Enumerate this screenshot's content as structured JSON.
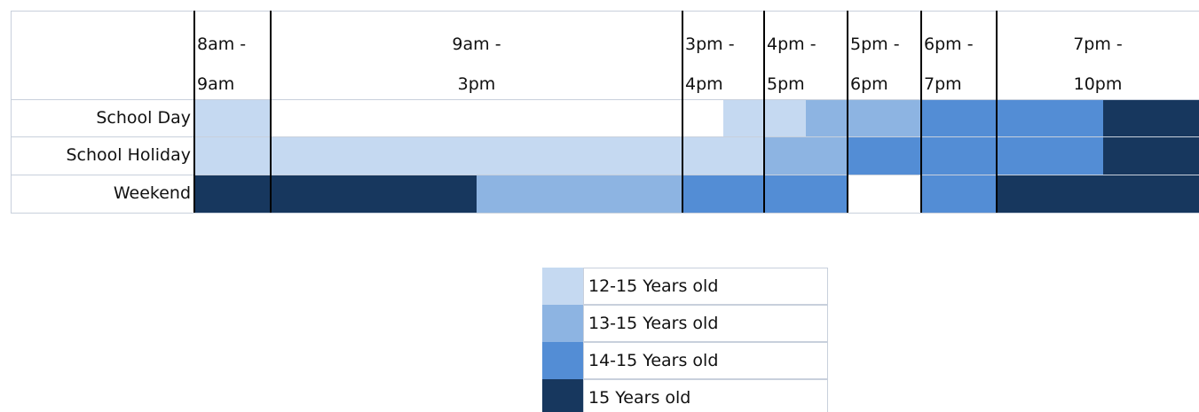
{
  "table": {
    "columns": [
      [
        "8am -",
        "9am"
      ],
      [
        "9am -",
        "3pm"
      ],
      [
        "3pm -",
        "4pm"
      ],
      [
        "4pm -",
        "5pm"
      ],
      [
        "5pm -",
        "6pm"
      ],
      [
        "6pm -",
        "7pm"
      ],
      [
        "7pm -",
        "10pm"
      ]
    ],
    "rows": [
      "School Day",
      "School Holiday",
      "Weekend"
    ]
  },
  "legend": [
    {
      "label": "12-15 Years old",
      "color": "#c5d9f1"
    },
    {
      "label": "13-15 Years old",
      "color": "#8db4e2"
    },
    {
      "label": "14-15 Years old",
      "color": "#538dd5"
    },
    {
      "label": "15 Years old",
      "color": "#17375e"
    }
  ]
}
